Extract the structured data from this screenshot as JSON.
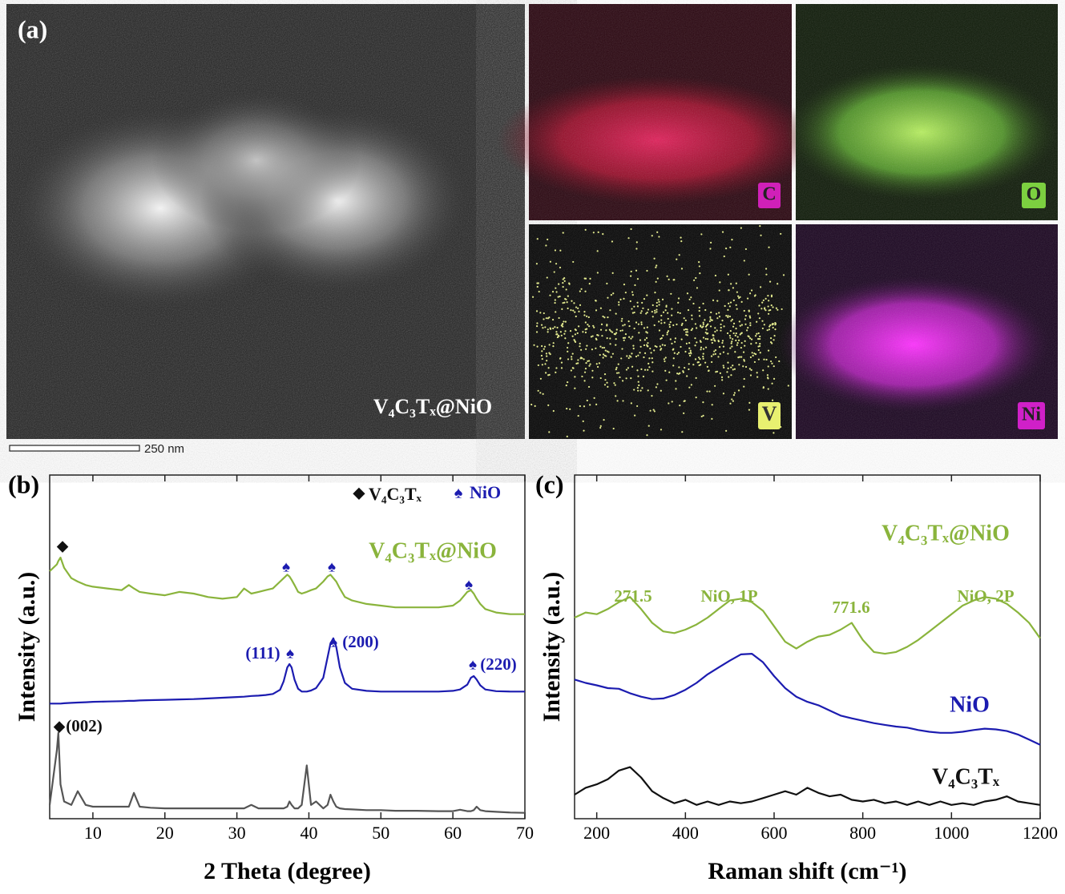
{
  "panel_a": {
    "label": "(a)",
    "caption": "V₄C₃Tₓ@NiO",
    "scale_bar": "250 nm",
    "maps": [
      "C",
      "O",
      "V",
      "Ni"
    ]
  },
  "chart_data": [
    {
      "type": "line",
      "panel_label": "(b)",
      "xlabel": "2 Theta (degree)",
      "ylabel": "Intensity (a.u.)",
      "xlim": [
        4,
        70
      ],
      "xticks": [
        10,
        20,
        30,
        40,
        50,
        60,
        70
      ],
      "ylim": [
        0,
        100
      ],
      "x": [
        4,
        5,
        5.2,
        5.5,
        6,
        7,
        7.9,
        9,
        10,
        12,
        14,
        15,
        15.7,
        16.5,
        18,
        20,
        22,
        24,
        26,
        28,
        30,
        31,
        32,
        33,
        34,
        35,
        36,
        36.5,
        37,
        37.3,
        37.6,
        38,
        38.5,
        39,
        39.7,
        40.3,
        41,
        42,
        42.6,
        43,
        43.4,
        43.8,
        44.3,
        45,
        46,
        48,
        50,
        52,
        55,
        58,
        60,
        61,
        62,
        62.5,
        62.9,
        63.3,
        63.8,
        64.5,
        66,
        68,
        70
      ],
      "series": [
        {
          "name": "V₄C₃Tₓ@NiO",
          "color": "#8ab43c",
          "values": [
            72,
            74,
            75,
            76,
            73,
            70,
            69,
            68,
            67.5,
            67,
            66.5,
            68,
            67,
            66,
            65.5,
            65,
            66,
            65.5,
            64.5,
            64,
            64.5,
            67,
            65.5,
            66,
            66.5,
            67,
            69,
            70,
            71,
            70.5,
            69.5,
            68,
            66,
            65.5,
            66,
            66.5,
            67,
            69,
            70.5,
            71,
            70,
            69,
            67,
            64.5,
            63.5,
            62.5,
            62,
            61.5,
            61.5,
            61.5,
            62,
            63.5,
            66,
            66.5,
            65.5,
            64,
            62.5,
            61,
            60,
            59.5,
            59.5
          ]
        },
        {
          "name": "NiO",
          "color": "#1c1cb0",
          "symbol": "♠",
          "values": [
            33.5,
            33.5,
            33.5,
            33.5,
            33.6,
            33.7,
            33.8,
            33.9,
            34,
            34.1,
            34.2,
            34.3,
            34.3,
            34.4,
            34.5,
            34.6,
            34.7,
            34.8,
            35,
            35.2,
            35.4,
            35.5,
            35.7,
            35.8,
            36,
            36.3,
            37.5,
            40,
            44,
            45,
            44,
            40.5,
            37.8,
            37,
            37,
            37.3,
            38,
            41,
            47,
            51,
            52.5,
            50,
            44,
            39.5,
            37.8,
            37.2,
            37,
            37,
            37,
            37,
            37.2,
            37.6,
            39,
            41,
            41.5,
            40.5,
            38.8,
            37.6,
            37.1,
            37,
            37
          ]
        },
        {
          "name": "V₄C₃Tₓ",
          "color": "#555555",
          "symbol": "◆",
          "values": [
            4,
            20,
            25,
            10,
            5,
            4,
            8,
            4,
            3.5,
            3.5,
            3.5,
            3.5,
            7.5,
            3.5,
            3.2,
            3,
            3,
            3,
            3,
            3,
            3,
            3,
            4,
            3,
            3,
            3,
            3,
            3,
            3.5,
            5,
            4,
            3,
            3,
            4,
            15.5,
            4,
            5,
            3,
            4,
            7,
            5,
            3.5,
            3,
            2.8,
            2.7,
            2.5,
            2.5,
            2.3,
            2.3,
            2.2,
            2.2,
            2.6,
            2.2,
            2.2,
            2.5,
            3.5,
            2.5,
            2.2,
            2,
            1.8,
            1.7
          ]
        }
      ],
      "annotations": [
        {
          "text": "◆",
          "color": "#111111"
        },
        {
          "text": "♠",
          "color": "#1c1cb0"
        },
        {
          "text": "♠",
          "color": "#1c1cb0"
        },
        {
          "text": "♠",
          "color": "#1c1cb0"
        },
        {
          "text": "(111)",
          "color": "#1c1cb0"
        },
        {
          "text": "♠",
          "color": "#1c1cb0"
        },
        {
          "text": "♠",
          "color": "#1c1cb0"
        },
        {
          "text": "(200)",
          "color": "#1c1cb0"
        },
        {
          "text": "♠",
          "color": "#1c1cb0"
        },
        {
          "text": "(220)",
          "color": "#1c1cb0"
        },
        {
          "text": "◆",
          "color": "#111111"
        },
        {
          "text": "(002)",
          "color": "#111111"
        }
      ]
    },
    {
      "type": "line",
      "panel_label": "(c)",
      "xlabel": "Raman shift (cm⁻¹)",
      "ylabel": "Intensity (a.u.)",
      "xlim": [
        150,
        1200
      ],
      "xticks": [
        200,
        400,
        600,
        800,
        1000,
        1200
      ],
      "ylim": [
        0,
        100
      ],
      "x": [
        150,
        175,
        200,
        225,
        250,
        275,
        300,
        325,
        350,
        375,
        400,
        425,
        450,
        475,
        500,
        525,
        550,
        575,
        600,
        625,
        650,
        675,
        700,
        725,
        750,
        775,
        800,
        825,
        850,
        875,
        900,
        925,
        950,
        975,
        1000,
        1025,
        1050,
        1075,
        1100,
        1125,
        1150,
        1175,
        1200
      ],
      "series": [
        {
          "name": "V₄C₃Tₓ@NiO",
          "color": "#8ab43c",
          "values": [
            58.5,
            60,
            59.5,
            61,
            63,
            64.5,
            61,
            57,
            54.5,
            54,
            55,
            56.5,
            58.5,
            61,
            63.5,
            64,
            63,
            60.5,
            56,
            51.5,
            49.5,
            51.5,
            53,
            53.5,
            55,
            57,
            52,
            48.5,
            48,
            48.5,
            50,
            52,
            54.5,
            57,
            59.5,
            62,
            63.5,
            64.5,
            64,
            62.5,
            60,
            57,
            52.5
          ]
        },
        {
          "name": "NiO",
          "color": "#1c1cb0",
          "values": [
            40.5,
            39.5,
            38.8,
            38,
            37.8,
            36.5,
            35.5,
            34.8,
            35,
            36,
            37.5,
            39.5,
            42,
            44,
            46,
            47.8,
            48,
            45.5,
            41.5,
            38,
            35.5,
            34,
            33,
            31.5,
            30,
            29.2,
            28.5,
            27.8,
            27.3,
            26.8,
            26.5,
            25.8,
            25.3,
            25,
            25,
            25.3,
            25.8,
            26.2,
            26,
            25.5,
            24.5,
            23,
            21.5
          ]
        },
        {
          "name": "V₄C₃Tₓ",
          "color": "#111111",
          "values": [
            7,
            9,
            10,
            11.5,
            14,
            15,
            12,
            8,
            6,
            4.5,
            5.5,
            4,
            5,
            4,
            5,
            4.5,
            5,
            6,
            7,
            8,
            7,
            9,
            7.5,
            6.5,
            7,
            5.5,
            5,
            5.5,
            4.5,
            5,
            4,
            5,
            4,
            5,
            4,
            4.5,
            4,
            5,
            5.5,
            6.5,
            5,
            4.5,
            4
          ]
        }
      ],
      "annotations": [
        {
          "text": "271.5",
          "color": "#8ab43c"
        },
        {
          "text": "NiO, 1P",
          "color": "#8ab43c"
        },
        {
          "text": "771.6",
          "color": "#8ab43c"
        },
        {
          "text": "NiO, 2P",
          "color": "#8ab43c"
        }
      ]
    }
  ]
}
